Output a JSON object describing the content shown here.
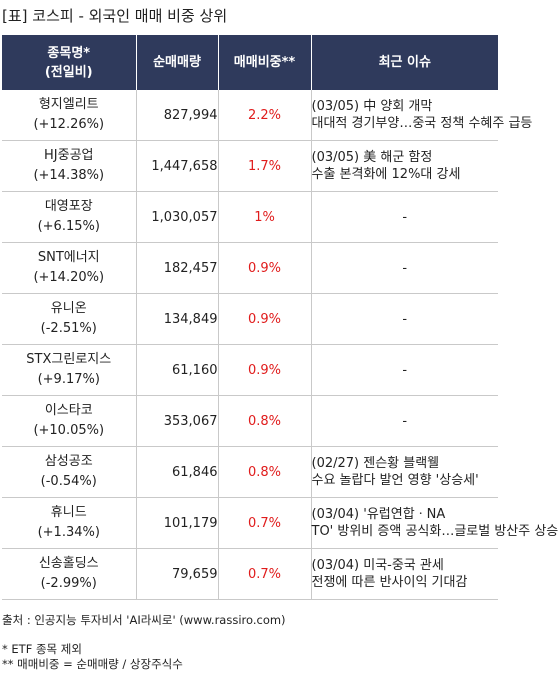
{
  "title": "[표] 코스피 - 외국인 매매 비중 상위",
  "header": {
    "col_name_line1": "종목명*",
    "col_name_line2": "(전일비)",
    "col_net": "순매매량",
    "col_ratio": "매매비중**",
    "col_issue": "최근 이슈"
  },
  "rows": [
    {
      "name": "형지엘리트",
      "change": "(+12.26%)",
      "net": "827,994",
      "ratio": "2.2%",
      "issue1": "(03/05) 中 양회 개막",
      "issue2": "대대적 경기부양…중국 정책 수혜주 급등"
    },
    {
      "name": "HJ중공업",
      "change": "(+14.38%)",
      "net": "1,447,658",
      "ratio": "1.7%",
      "issue1": "(03/05) 美 해군 함정",
      "issue2": "수출 본격화에 12%대 강세"
    },
    {
      "name": "대영포장",
      "change": "(+6.15%)",
      "net": "1,030,057",
      "ratio": "1%",
      "issue1": "-",
      "issue2": ""
    },
    {
      "name": "SNT에너지",
      "change": "(+14.20%)",
      "net": "182,457",
      "ratio": "0.9%",
      "issue1": "-",
      "issue2": ""
    },
    {
      "name": "유니온",
      "change": "(-2.51%)",
      "net": "134,849",
      "ratio": "0.9%",
      "issue1": "-",
      "issue2": ""
    },
    {
      "name": "STX그린로지스",
      "change": "(+9.17%)",
      "net": "61,160",
      "ratio": "0.9%",
      "issue1": "-",
      "issue2": ""
    },
    {
      "name": "이스타코",
      "change": "(+10.05%)",
      "net": "353,067",
      "ratio": "0.8%",
      "issue1": "-",
      "issue2": ""
    },
    {
      "name": "삼성공조",
      "change": "(-0.54%)",
      "net": "61,846",
      "ratio": "0.8%",
      "issue1": "(02/27) 젠슨황 블랙웰",
      "issue2": "수요 놀랍다 발언 영향 '상승세'"
    },
    {
      "name": "휴니드",
      "change": "(+1.34%)",
      "net": "101,179",
      "ratio": "0.7%",
      "issue1": "(03/04) '유럽연합ㆍNA",
      "issue2": "TO' 방위비 증액 공식화…글로벌 방산주 상승"
    },
    {
      "name": "신송홀딩스",
      "change": "(-2.99%)",
      "net": "79,659",
      "ratio": "0.7%",
      "issue1": "(03/04) 미국-중국 관세",
      "issue2": "전쟁에 따른 반사이익 기대감"
    }
  ],
  "footer": {
    "source": "출처 : 인공지능 투자비서 'AI라씨로' (www.rassiro.com)",
    "note1": "* ETF 종목 제외",
    "note2": "** 매매비중 = 순매매량 / 상장주식수"
  }
}
